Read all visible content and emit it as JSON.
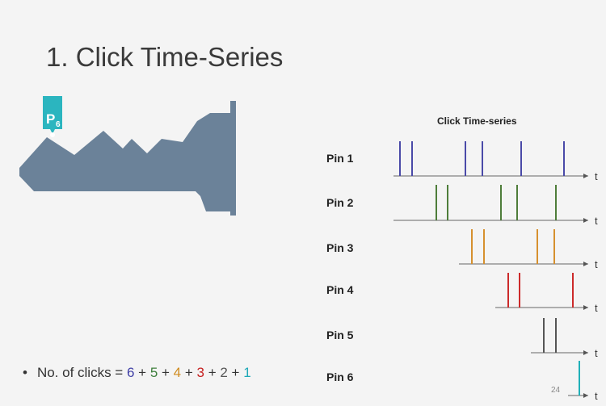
{
  "slide": {
    "title": "1. Click Time-Series",
    "page_number": "24"
  },
  "key_figure": {
    "pin_tag": "P",
    "pin_tag_sub": "6",
    "tag_color": "#2bb5bf",
    "key_color": "#6b8299"
  },
  "bullet": {
    "prefix": "No. of clicks = ",
    "terms": [
      "6",
      "5",
      "4",
      "3",
      "2",
      "1"
    ],
    "separator": " + "
  },
  "timeseries": {
    "title": "Click Time-series",
    "axis_label": "t",
    "pins": [
      {
        "label": "Pin 1",
        "color": "#4a4aa8"
      },
      {
        "label": "Pin 2",
        "color": "#4e7d3a"
      },
      {
        "label": "Pin 3",
        "color": "#d6902e"
      },
      {
        "label": "Pin 4",
        "color": "#cc2a2a"
      },
      {
        "label": "Pin 5",
        "color": "#555555"
      },
      {
        "label": "Pin 6",
        "color": "#20b0b8"
      }
    ]
  }
}
